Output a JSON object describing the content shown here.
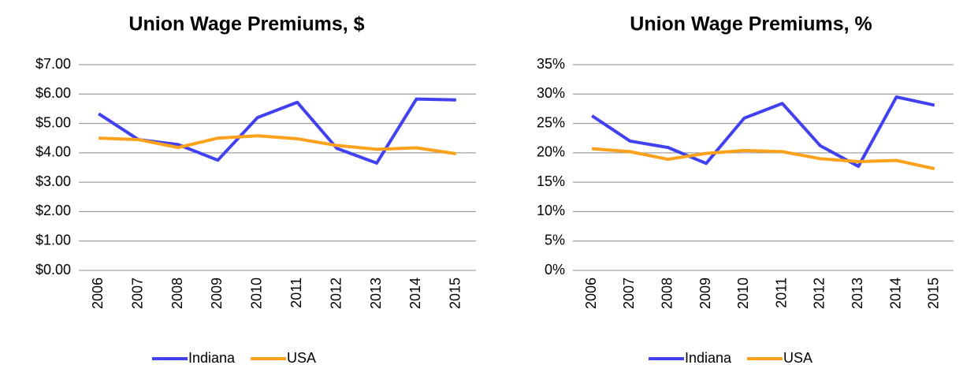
{
  "chart_data": [
    {
      "type": "line",
      "title": "Union Wage Premiums, $",
      "categories": [
        "2006",
        "2007",
        "2008",
        "2009",
        "2010",
        "2011",
        "2012",
        "2013",
        "2014",
        "2015"
      ],
      "series": [
        {
          "name": "Indiana",
          "color": "#4141f0",
          "values": [
            5.33,
            4.45,
            4.28,
            3.75,
            5.2,
            5.72,
            4.15,
            3.65,
            5.83,
            5.8
          ]
        },
        {
          "name": "USA",
          "color": "#fba11c",
          "values": [
            4.5,
            4.45,
            4.18,
            4.5,
            4.58,
            4.48,
            4.25,
            4.12,
            4.17,
            3.97
          ]
        }
      ],
      "ylim": [
        0,
        7
      ],
      "yticks": [
        {
          "value": 0,
          "label": "$0.00"
        },
        {
          "value": 1,
          "label": "$1.00"
        },
        {
          "value": 2,
          "label": "$2.00"
        },
        {
          "value": 3,
          "label": "$3.00"
        },
        {
          "value": 4,
          "label": "$4.00"
        },
        {
          "value": 5,
          "label": "$5.00"
        },
        {
          "value": 6,
          "label": "$6.00"
        },
        {
          "value": 7,
          "label": "$7.00"
        }
      ],
      "grid": true,
      "legend": "bottom"
    },
    {
      "type": "line",
      "title": "Union Wage Premiums, %",
      "categories": [
        "2006",
        "2007",
        "2008",
        "2009",
        "2010",
        "2011",
        "2012",
        "2013",
        "2014",
        "2015"
      ],
      "series": [
        {
          "name": "Indiana",
          "color": "#4141f0",
          "values": [
            26.3,
            22.0,
            20.9,
            18.2,
            25.9,
            28.4,
            21.2,
            17.7,
            29.5,
            28.1
          ]
        },
        {
          "name": "USA",
          "color": "#fba11c",
          "values": [
            20.7,
            20.2,
            18.9,
            19.9,
            20.4,
            20.2,
            19.0,
            18.5,
            18.7,
            17.3
          ]
        }
      ],
      "ylim": [
        0,
        35
      ],
      "yticks": [
        {
          "value": 0,
          "label": "0%"
        },
        {
          "value": 5,
          "label": "5%"
        },
        {
          "value": 10,
          "label": "10%"
        },
        {
          "value": 15,
          "label": "15%"
        },
        {
          "value": 20,
          "label": "20%"
        },
        {
          "value": 25,
          "label": "25%"
        },
        {
          "value": 30,
          "label": "30%"
        },
        {
          "value": 35,
          "label": "35%"
        }
      ],
      "grid": true,
      "legend": "bottom"
    }
  ]
}
